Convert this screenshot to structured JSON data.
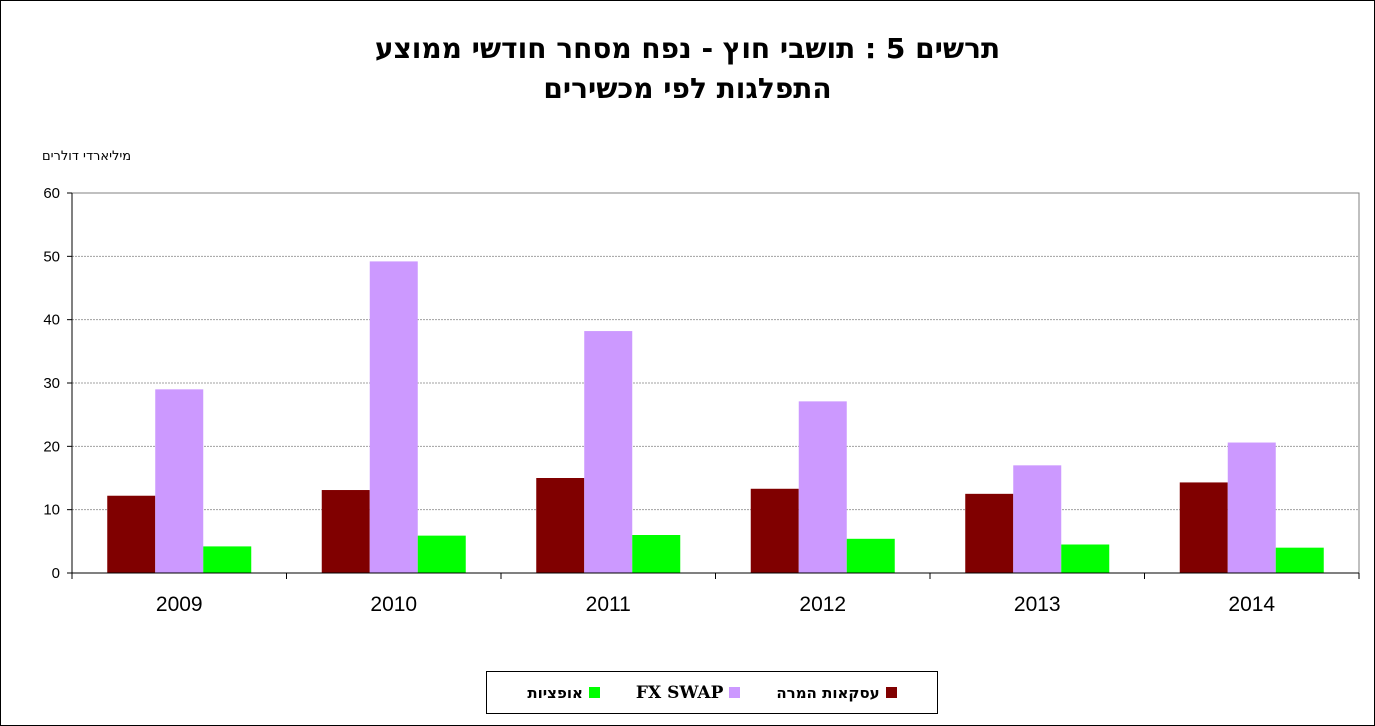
{
  "chart_data": {
    "type": "bar",
    "title": "תרשים 5 : תושבי חוץ - נפח מסחר חודשי ממוצע",
    "subtitle": "התפלגות לפי מכשירים",
    "ylabel": "מיליארדי דולרים",
    "xlabel": "",
    "categories": [
      "2009",
      "2010",
      "2011",
      "2012",
      "2013",
      "2014"
    ],
    "ylim": [
      0,
      60
    ],
    "yticks": [
      0,
      10,
      20,
      30,
      40,
      50,
      60
    ],
    "grid": true,
    "legend_position": "bottom",
    "series": [
      {
        "name": "עסקאות המרה",
        "color": "#800000",
        "values": [
          12.2,
          13.1,
          15.0,
          13.3,
          12.5,
          14.3
        ]
      },
      {
        "name": "FX SWAP",
        "color": "#cc99ff",
        "values": [
          29.0,
          49.2,
          38.2,
          27.1,
          17.0,
          20.6
        ]
      },
      {
        "name": "אופציות",
        "color": "#00ff00",
        "values": [
          4.2,
          5.9,
          6.0,
          5.4,
          4.5,
          4.0
        ]
      }
    ]
  }
}
